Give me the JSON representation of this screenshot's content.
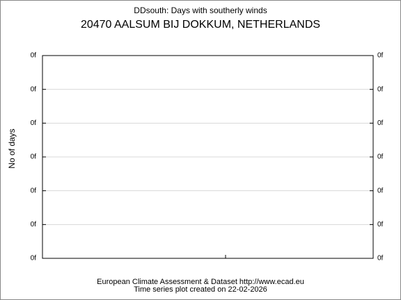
{
  "chart_data": {
    "type": "line",
    "title": "DDsouth: Days with southerly winds",
    "subtitle": "20470 AALSUM BIJ DOKKUM, NETHERLANDS",
    "ylabel": "No of days",
    "footer": [
      "European Climate Assessment & Dataset  http://www.ecad.eu",
      "Time series plot created on 22-02-2026"
    ],
    "ylim": [
      0,
      6
    ],
    "yticks": [
      {
        "value": 0,
        "label": "0f"
      },
      {
        "value": 1,
        "label": "0f"
      },
      {
        "value": 2,
        "label": "0f"
      },
      {
        "value": 3,
        "label": "0f"
      },
      {
        "value": 4,
        "label": "0f"
      },
      {
        "value": 5,
        "label": "0f"
      },
      {
        "value": 6,
        "label": "0f"
      }
    ],
    "grid": true,
    "series": []
  }
}
